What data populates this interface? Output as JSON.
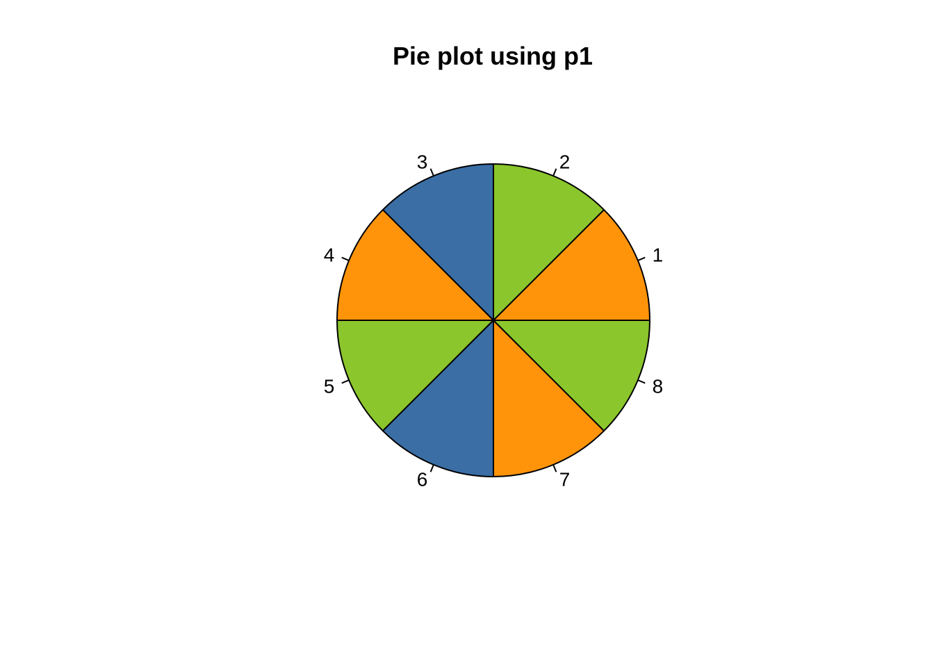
{
  "chart_data": {
    "type": "pie",
    "title": "Pie plot using p1",
    "categories": [
      "1",
      "2",
      "3",
      "4",
      "5",
      "6",
      "7",
      "8"
    ],
    "values": [
      1,
      1,
      1,
      1,
      1,
      1,
      1,
      1
    ],
    "colors": [
      "#FF940B",
      "#8BC62C",
      "#3A6EA5",
      "#FF940B",
      "#8BC62C",
      "#3A6EA5",
      "#FF940B",
      "#8BC62C"
    ],
    "start_angle_deg": 0,
    "direction": "counterclockwise",
    "legend": "none"
  }
}
